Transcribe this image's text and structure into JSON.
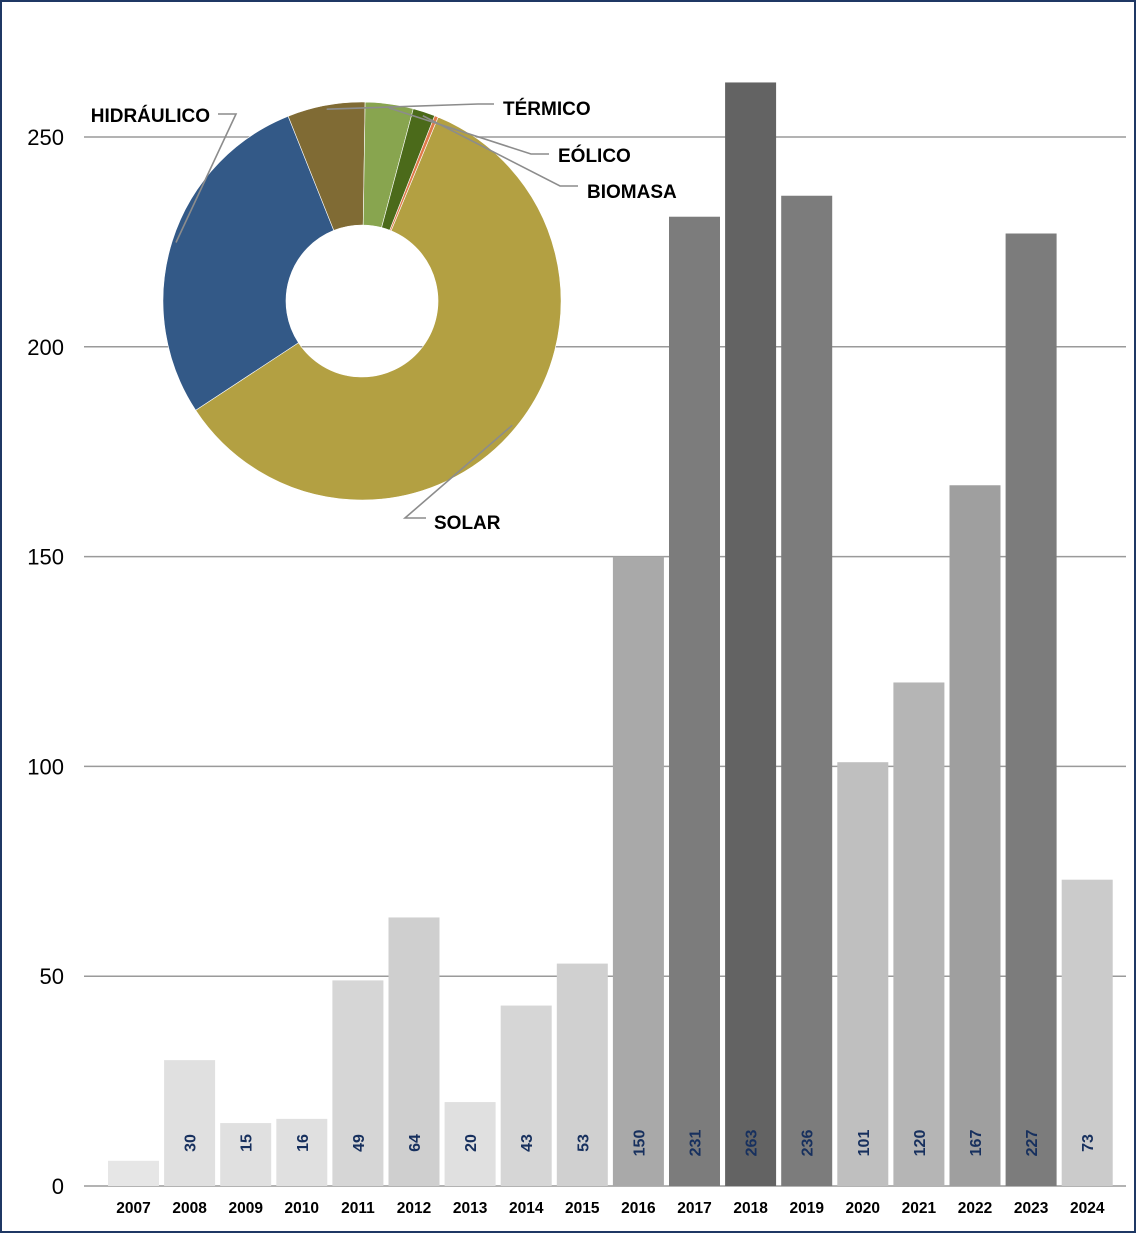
{
  "chart_data": [
    {
      "type": "bar",
      "categories": [
        "2007",
        "2008",
        "2009",
        "2010",
        "2011",
        "2012",
        "2013",
        "2014",
        "2015",
        "2016",
        "2017",
        "2018",
        "2019",
        "2020",
        "2021",
        "2022",
        "2023",
        "2024"
      ],
      "values": [
        6,
        30,
        15,
        16,
        49,
        64,
        20,
        43,
        53,
        150,
        231,
        263,
        236,
        101,
        120,
        167,
        227,
        73
      ],
      "labels": [
        "",
        "30",
        "15",
        "16",
        "49",
        "64",
        "20",
        "43",
        "53",
        "150",
        "231",
        "263",
        "236",
        "101",
        "120",
        "167",
        "227",
        "73"
      ],
      "ylim": [
        0,
        270
      ],
      "yticks": [
        0,
        50,
        100,
        150,
        200,
        250
      ],
      "grid": true,
      "title": "",
      "xlabel": "",
      "ylabel": "",
      "colors": [
        "#e6e6e6",
        "#e0e0e0",
        "#e0e0e0",
        "#e0e0e0",
        "#d6d6d6",
        "#cfcfcf",
        "#e0e0e0",
        "#d6d6d6",
        "#d0d0d0",
        "#a9a9a9",
        "#7c7c7c",
        "#636363",
        "#7c7c7c",
        "#bfbfbf",
        "#b5b5b5",
        "#9f9f9f",
        "#7c7c7c",
        "#cbcbcb"
      ]
    },
    {
      "type": "pie",
      "style": "donut",
      "slices": [
        {
          "name": "SOLAR",
          "value": 59.5,
          "color": "#b3a042"
        },
        {
          "name": "HIDRÁULICO",
          "value": 28.2,
          "color": "#335987"
        },
        {
          "name": "TÉRMICO",
          "value": 6.3,
          "color": "#806b34"
        },
        {
          "name": "EÓLICO",
          "value": 3.9,
          "color": "#88a54f"
        },
        {
          "name": "BIOMASA",
          "value": 1.8,
          "color": "#4b6a1a"
        },
        {
          "name": "",
          "value": 0.3,
          "color": "#e07a4a"
        }
      ]
    }
  ]
}
